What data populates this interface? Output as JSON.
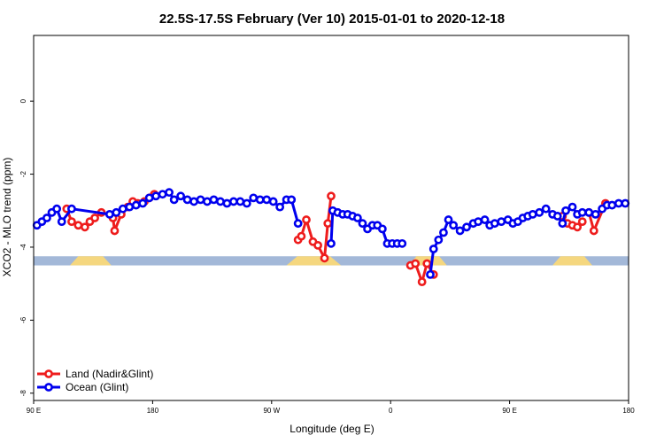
{
  "chart_data": {
    "type": "line",
    "title": "22.5S-17.5S February (Ver 10)   2015-01-01 to 2020-12-18",
    "xlabel": "Longitude (deg E)",
    "ylabel": "XCO2 - MLO trend (ppm)",
    "xlim": [
      90,
      450
    ],
    "ylim": [
      -8.2,
      1.8
    ],
    "x_ticks": [
      {
        "value": 90,
        "label": "90 E"
      },
      {
        "value": 162,
        "label": "180"
      },
      {
        "value": 234,
        "label": "90 W"
      },
      {
        "value": 306,
        "label": "0"
      },
      {
        "value": 378,
        "label": "90 E"
      },
      {
        "value": 450,
        "label": "180"
      }
    ],
    "y_ticks": [
      {
        "value": 0,
        "label": "0"
      },
      {
        "value": -2,
        "label": "-2"
      },
      {
        "value": -4,
        "label": "-4"
      },
      {
        "value": -6,
        "label": "-6"
      },
      {
        "value": -8,
        "label": "-8"
      }
    ],
    "grid": false,
    "legend_position": "bottom-left",
    "surface_band": {
      "y_top": -4.25,
      "y_bottom": -4.5,
      "ocean_color": "#a3b8d8",
      "land_color": "#f5d77f",
      "land_segments": [
        [
          112,
          137
        ],
        [
          243,
          276
        ],
        [
          317,
          340
        ],
        [
          404,
          428
        ]
      ]
    },
    "series": [
      {
        "name": "Land (Nadir&Glint)",
        "color": "#ee1c1c",
        "segments": [
          {
            "x": [
              110,
              113,
              117,
              121,
              124,
              127,
              131
            ],
            "y": [
              -2.95,
              -3.3,
              -3.4,
              -3.45,
              -3.3,
              -3.2,
              -3.05
            ]
          },
          {
            "x": [
              138,
              139,
              143,
              147,
              150,
              153,
              157,
              160,
              163
            ],
            "y": [
              -3.2,
              -3.55,
              -3.1,
              -2.9,
              -2.75,
              -2.8,
              -2.75,
              -2.65,
              -2.55
            ]
          },
          {
            "x": [
              250,
              252,
              255,
              259,
              262,
              266,
              268,
              270
            ],
            "y": [
              -3.8,
              -3.7,
              -3.25,
              -3.85,
              -3.95,
              -4.3,
              -3.35,
              -2.6
            ]
          },
          {
            "x": [
              318,
              321,
              325,
              328,
              332
            ],
            "y": [
              -4.5,
              -4.45,
              -4.95,
              -4.45,
              -4.75
            ]
          },
          {
            "x": [
              410,
              413,
              416,
              419,
              422
            ],
            "y": [
              -3.15,
              -3.35,
              -3.4,
              -3.45,
              -3.3
            ]
          },
          {
            "x": [
              426,
              429,
              436
            ],
            "y": [
              -3.05,
              -3.55,
              -2.8
            ]
          }
        ]
      },
      {
        "name": "Ocean (Glint)",
        "color": "#0000ee",
        "segments": [
          {
            "x": [
              92,
              95,
              98,
              101,
              104,
              107,
              113,
              136,
              140,
              144,
              148,
              152,
              156,
              160,
              164,
              168,
              172,
              175,
              179,
              183,
              187,
              191,
              195,
              199,
              203,
              207,
              211,
              215,
              219,
              223,
              227,
              231,
              235,
              239,
              243,
              246,
              250
            ],
            "y": [
              -3.4,
              -3.3,
              -3.2,
              -3.05,
              -2.95,
              -3.3,
              -2.95,
              -3.1,
              -3.05,
              -2.95,
              -2.9,
              -2.85,
              -2.8,
              -2.65,
              -2.6,
              -2.55,
              -2.5,
              -2.7,
              -2.6,
              -2.7,
              -2.75,
              -2.7,
              -2.75,
              -2.7,
              -2.75,
              -2.8,
              -2.75,
              -2.75,
              -2.8,
              -2.65,
              -2.7,
              -2.7,
              -2.75,
              -2.9,
              -2.7,
              -2.7,
              -3.35
            ]
          },
          {
            "x": [
              270,
              271,
              274,
              277,
              280,
              283,
              286,
              289,
              292,
              295,
              298,
              301,
              304,
              307,
              310,
              313
            ],
            "y": [
              -3.9,
              -3.0,
              -3.05,
              -3.1,
              -3.1,
              -3.15,
              -3.2,
              -3.35,
              -3.5,
              -3.4,
              -3.4,
              -3.5,
              -3.9,
              -3.9,
              -3.9,
              -3.9
            ]
          },
          {
            "x": [
              330,
              332,
              335,
              338,
              341,
              344,
              348,
              352,
              356,
              359,
              363,
              366,
              369,
              373,
              377,
              380,
              383,
              386,
              389,
              392,
              396,
              400,
              404,
              407,
              410,
              412,
              416,
              419,
              422,
              426,
              430,
              434,
              437,
              440,
              444,
              448
            ],
            "y": [
              -4.75,
              -4.05,
              -3.8,
              -3.6,
              -3.25,
              -3.4,
              -3.55,
              -3.45,
              -3.35,
              -3.3,
              -3.25,
              -3.4,
              -3.35,
              -3.3,
              -3.25,
              -3.35,
              -3.3,
              -3.2,
              -3.15,
              -3.1,
              -3.05,
              -2.95,
              -3.1,
              -3.15,
              -3.35,
              -3.0,
              -2.9,
              -3.1,
              -3.05,
              -3.05,
              -3.1,
              -2.95,
              -2.85,
              -2.85,
              -2.8,
              -2.8
            ]
          }
        ]
      }
    ]
  }
}
